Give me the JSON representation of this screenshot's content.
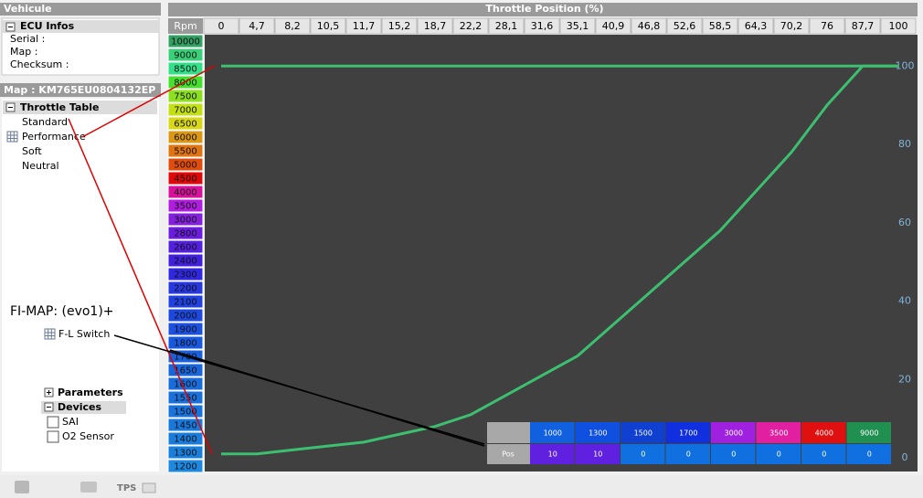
{
  "left_panel": {
    "vehicule_header": "Vehicule",
    "ecu_infos": {
      "title": "ECU Infos",
      "fields": [
        "Serial :",
        "Map :",
        "Checksum :"
      ]
    },
    "map_header": "Map : KM765EU0804132EP",
    "throttle_table": {
      "title": "Throttle Table",
      "items": [
        "Standard",
        "Performance",
        "Soft",
        "Neutral"
      ]
    },
    "annotation": "FI-MAP: (evo1)+",
    "fl_switch": "F-L Switch",
    "parameters": "Parameters",
    "devices": {
      "title": "Devices",
      "items": [
        "SAI",
        "O2 Sensor"
      ]
    }
  },
  "status_bar": {
    "tps": "TPS"
  },
  "rpm_header": "Rpm",
  "rpm_rows": [
    {
      "rpm": 10000,
      "color": "#31a062"
    },
    {
      "rpm": 9000,
      "color": "#3ad07a"
    },
    {
      "rpm": 8500,
      "color": "#33e08a"
    },
    {
      "rpm": 8000,
      "color": "#44e02c"
    },
    {
      "rpm": 7500,
      "color": "#8ce020"
    },
    {
      "rpm": 7000,
      "color": "#c4e014"
    },
    {
      "rpm": 6500,
      "color": "#d8d818"
    },
    {
      "rpm": 6000,
      "color": "#dc9814"
    },
    {
      "rpm": 5500,
      "color": "#e07410"
    },
    {
      "rpm": 5000,
      "color": "#e04c0c"
    },
    {
      "rpm": 4500,
      "color": "#e00808"
    },
    {
      "rpm": 4000,
      "color": "#d8109c"
    },
    {
      "rpm": 3500,
      "color": "#b01ce0"
    },
    {
      "rpm": 3000,
      "color": "#8420dc"
    },
    {
      "rpm": 2800,
      "color": "#6c1ce0"
    },
    {
      "rpm": 2600,
      "color": "#5420e0"
    },
    {
      "rpm": 2400,
      "color": "#4020dc"
    },
    {
      "rpm": 2300,
      "color": "#3028e0"
    },
    {
      "rpm": 2200,
      "color": "#2838e0"
    },
    {
      "rpm": 2100,
      "color": "#2040e0"
    },
    {
      "rpm": 2000,
      "color": "#1c48e0"
    },
    {
      "rpm": 1900,
      "color": "#1c50e0"
    },
    {
      "rpm": 1800,
      "color": "#1858e0"
    },
    {
      "rpm": 1700,
      "color": "#1860dc"
    },
    {
      "rpm": 1650,
      "color": "#1866dc"
    },
    {
      "rpm": 1600,
      "color": "#186cdc"
    },
    {
      "rpm": 1550,
      "color": "#1870dc"
    },
    {
      "rpm": 1500,
      "color": "#1874dc"
    },
    {
      "rpm": 1450,
      "color": "#1878dc"
    },
    {
      "rpm": 1400,
      "color": "#187cdc"
    },
    {
      "rpm": 1300,
      "color": "#1880dc"
    },
    {
      "rpm": 1200,
      "color": "#1c88e0"
    }
  ],
  "chart_data": {
    "type": "line",
    "title": "Throttle Position (%)",
    "categories": [
      "0",
      "4,7",
      "8,2",
      "10,5",
      "11,7",
      "15,2",
      "18,7",
      "22,2",
      "28,1",
      "31,6",
      "35,1",
      "40,9",
      "46,8",
      "52,6",
      "58,5",
      "64,3",
      "70,2",
      "76",
      "87,7",
      "100"
    ],
    "series": [
      {
        "color": "#3cc070",
        "values": [
          1,
          1,
          2,
          3,
          4,
          6,
          8,
          11,
          16,
          21,
          26,
          34,
          42,
          50,
          58,
          68,
          78,
          90,
          100,
          100
        ]
      },
      {
        "color": "#3cc070",
        "values": [
          100,
          100,
          100,
          100,
          100,
          100,
          100,
          100,
          100,
          100,
          100,
          100,
          100,
          100,
          100,
          100,
          100,
          100,
          100,
          100
        ]
      }
    ],
    "ylim": [
      -3.5,
      108
    ],
    "yticks": [
      0,
      20,
      40,
      60,
      80,
      100
    ]
  },
  "overlay_table": {
    "header": [
      {
        "rpm": 1000,
        "color": "#1060e0"
      },
      {
        "rpm": 1300,
        "color": "#1050e0"
      },
      {
        "rpm": 1500,
        "color": "#1040d0"
      },
      {
        "rpm": 1700,
        "color": "#1030e0"
      },
      {
        "rpm": 3000,
        "color": "#a020e0"
      },
      {
        "rpm": 3500,
        "color": "#e020a0"
      },
      {
        "rpm": 4000,
        "color": "#e01010"
      },
      {
        "rpm": 9000,
        "color": "#209050"
      }
    ],
    "row_label": "Pos",
    "row": [
      {
        "value": 10,
        "color": "#6020e0"
      },
      {
        "value": 10,
        "color": "#6020e0"
      },
      {
        "value": 0,
        "color": "#1070e0"
      },
      {
        "value": 0,
        "color": "#1070e0"
      },
      {
        "value": 0,
        "color": "#1070e0"
      },
      {
        "value": 0,
        "color": "#1070e0"
      },
      {
        "value": 0,
        "color": "#1070e0"
      },
      {
        "value": 0,
        "color": "#1070e0"
      }
    ]
  }
}
